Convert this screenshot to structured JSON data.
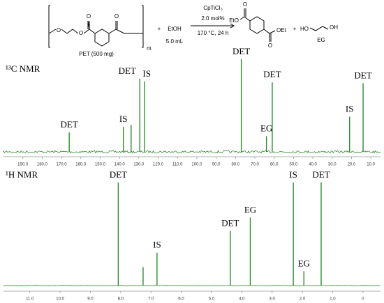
{
  "scheme": {
    "pet_atoms": [
      "O",
      "O",
      "O",
      "O"
    ],
    "repeat": "m",
    "pet_label": "PET (500 mg)",
    "plus_1": "+",
    "reagent": "EtOH",
    "volume": "5.0 mL",
    "catalyst": "CpTiCl₃",
    "loading": "2.0 mol%",
    "conditions": "170 °C, 24 h",
    "det_atoms": [
      "O",
      "O"
    ],
    "det_left": "EtO",
    "det_right": "OEt",
    "plus_2": "+",
    "eg_left": "HO",
    "eg_right": "OH",
    "eg_label": "EG"
  },
  "chart_data": [
    {
      "type": "spectrum",
      "title": "¹³C NMR",
      "color": "#2e8b2e",
      "x": [
        166,
        138,
        134,
        129.5,
        127,
        77,
        64,
        61,
        21,
        14
      ],
      "values": [
        0.21,
        0.27,
        0.29,
        0.79,
        0.76,
        1.0,
        0.17,
        0.75,
        0.38,
        0.74
      ],
      "peak_labels": [
        "DET",
        "IS",
        null,
        "DET",
        "IS",
        "DET",
        "EG",
        "DET",
        "IS",
        "DET"
      ],
      "xlim": [
        200,
        5
      ],
      "ylim": [
        0,
        1
      ],
      "xticks": [
        {
          "value": 190,
          "label": "190.0"
        },
        {
          "value": 180,
          "label": "180.0"
        },
        {
          "value": 170,
          "label": "170.0"
        },
        {
          "value": 160,
          "label": "160.0"
        },
        {
          "value": 150,
          "label": "150.0"
        },
        {
          "value": 140,
          "label": "140.0"
        },
        {
          "value": 130,
          "label": "130.0"
        },
        {
          "value": 120,
          "label": "120.0"
        },
        {
          "value": 110,
          "label": "110.0"
        },
        {
          "value": 100,
          "label": "100.0"
        },
        {
          "value": 90,
          "label": "90.0"
        },
        {
          "value": 80,
          "label": "80.0"
        },
        {
          "value": 70,
          "label": "70.0"
        },
        {
          "value": 60,
          "label": "60.0"
        },
        {
          "value": 50,
          "label": "50.0"
        },
        {
          "value": 40,
          "label": "40.0"
        },
        {
          "value": 30,
          "label": "30.0"
        },
        {
          "value": 20,
          "label": "20.0"
        },
        {
          "value": 10,
          "label": "10.0"
        }
      ]
    },
    {
      "type": "spectrum",
      "title": "¹H NMR",
      "color": "#2e8b2e",
      "x": [
        8.08,
        7.26,
        6.8,
        4.38,
        3.72,
        2.3,
        1.95,
        1.38
      ],
      "values": [
        1.0,
        0.18,
        0.32,
        0.53,
        0.66,
        1.0,
        0.14,
        1.0
      ],
      "peak_labels": [
        "DET",
        null,
        "IS",
        "DET",
        "EG",
        "IS",
        "EG",
        "DET"
      ],
      "xlim": [
        11.87,
        -0.58
      ],
      "ylim": [
        0,
        1
      ],
      "xticks": [
        {
          "value": 11,
          "label": "11.0"
        },
        {
          "value": 10,
          "label": "10.0"
        },
        {
          "value": 9,
          "label": "9.0"
        },
        {
          "value": 8,
          "label": "8.0"
        },
        {
          "value": 7,
          "label": "7.0"
        },
        {
          "value": 6,
          "label": "6.0"
        },
        {
          "value": 5,
          "label": "5.0"
        },
        {
          "value": 4,
          "label": "4.0"
        },
        {
          "value": 3,
          "label": "3.0"
        },
        {
          "value": 2,
          "label": "2.0"
        },
        {
          "value": 1,
          "label": "1.0"
        },
        0
      ]
    }
  ]
}
